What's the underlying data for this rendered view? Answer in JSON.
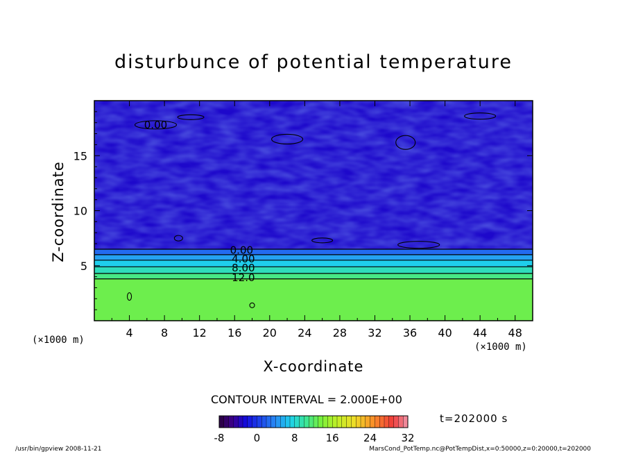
{
  "chart_data": {
    "type": "heatmap",
    "title": "disturbunce of potential temperature",
    "xlabel": "X-coordinate",
    "ylabel": "Z-coordinate",
    "x_unit": "(×1000 m)",
    "z_unit": "(×1000 m)",
    "xlim": [
      0,
      50
    ],
    "ylim": [
      0,
      20
    ],
    "x_ticks": [
      4,
      8,
      12,
      16,
      20,
      24,
      28,
      32,
      36,
      40,
      44,
      48
    ],
    "y_ticks": [
      5,
      10,
      15
    ],
    "contour_interval": "CONTOUR INTERVAL = 2.000E+00",
    "contour_labels": [
      {
        "text": "0.00",
        "x": 7.0,
        "z": 17.8
      },
      {
        "text": "0.00",
        "x": 16.8,
        "z": 6.4
      },
      {
        "text": "4.00",
        "x": 17.0,
        "z": 5.6
      },
      {
        "text": "8.00",
        "x": 17.0,
        "z": 4.8
      },
      {
        "text": "12.0",
        "x": 17.0,
        "z": 3.9
      }
    ],
    "layers": [
      {
        "z_from": 0,
        "z_to": 3.8,
        "value": 13
      },
      {
        "z_from": 3.8,
        "z_to": 4.3,
        "value": 11
      },
      {
        "z_from": 4.3,
        "z_to": 4.9,
        "value": 9
      },
      {
        "z_from": 4.9,
        "z_to": 5.5,
        "value": 7
      },
      {
        "z_from": 5.5,
        "z_to": 6.0,
        "value": 5
      },
      {
        "z_from": 6.0,
        "z_to": 6.5,
        "value": 2.5
      },
      {
        "z_from": 6.5,
        "z_to": 20,
        "value": -3
      }
    ],
    "time": "t=202000 s",
    "colorbar": {
      "min": -8,
      "max": 32,
      "tick_labels": [
        "-8",
        "0",
        "8",
        "16",
        "24",
        "32"
      ],
      "tick_values": [
        -8,
        0,
        8,
        16,
        24,
        32
      ]
    }
  },
  "footer": {
    "left": "/usr/bin/gpview   2008-11-21",
    "right": "MarsCond_PotTemp.nc@PotTempDist,x=0:50000,z=0:20000,t=202000"
  }
}
